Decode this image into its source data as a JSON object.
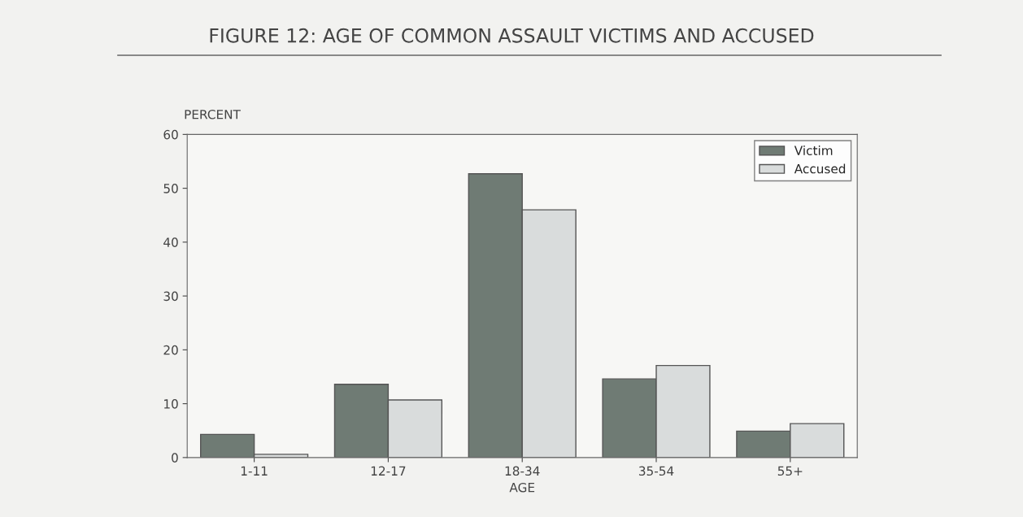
{
  "chart_data": {
    "type": "bar",
    "title": "FIGURE 12: AGE OF COMMON ASSAULT VICTIMS AND ACCUSED",
    "xlabel": "AGE",
    "ylabel": "PERCENT",
    "categories": [
      "1-11",
      "12-17",
      "18-34",
      "35-54",
      "55+"
    ],
    "series": [
      {
        "name": "Victim",
        "color": "#6f7b74",
        "values": [
          4.3,
          13.6,
          52.7,
          14.6,
          4.9
        ]
      },
      {
        "name": "Accused",
        "color": "#d9dcdc",
        "values": [
          0.6,
          10.7,
          46.0,
          17.1,
          6.3
        ]
      }
    ],
    "ylim": [
      0,
      60
    ],
    "yticks": [
      0,
      10,
      20,
      30,
      40,
      50,
      60
    ],
    "grid": false,
    "legend": "top right"
  }
}
